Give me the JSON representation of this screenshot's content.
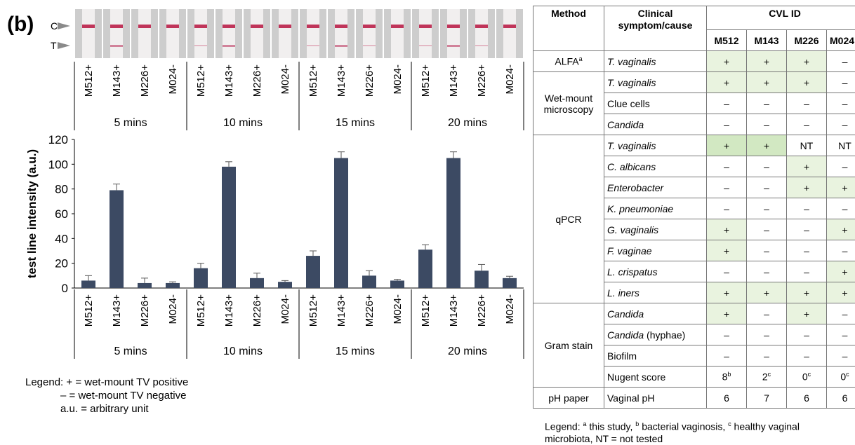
{
  "panel_label": "(b)",
  "strip_markers": {
    "c": "C",
    "t": "T"
  },
  "chart_data": {
    "type": "bar",
    "groups": [
      "5 mins",
      "10 mins",
      "15 mins",
      "20 mins"
    ],
    "categories": [
      "M512+",
      "M143+",
      "M226+",
      "M024-"
    ],
    "values": [
      [
        6,
        79,
        4,
        4
      ],
      [
        16,
        98,
        8,
        5
      ],
      [
        26,
        105,
        10,
        6
      ],
      [
        31,
        105,
        14,
        8
      ]
    ],
    "errors": [
      [
        4,
        5,
        4,
        1
      ],
      [
        4,
        4,
        4,
        1
      ],
      [
        4,
        5,
        4,
        1
      ],
      [
        4,
        5,
        5,
        1.5
      ]
    ],
    "ylabel": "test line intensity (a.u.)",
    "ylim": [
      0,
      120
    ],
    "yticks": [
      0,
      20,
      40,
      60,
      80,
      100,
      120
    ],
    "bar_color": "#3c4a63",
    "grid": false
  },
  "chart_legend": [
    "Legend: + = wet-mount TV positive",
    "            – = wet-mount TV negative",
    "            a.u. = arbitrary unit"
  ],
  "table": {
    "header": {
      "method": "Method",
      "symptom": "Clinical symptom/cause",
      "cvl_id": "CVL ID",
      "ids": [
        "M512",
        "M143",
        "M226",
        "M024"
      ]
    },
    "groups": [
      {
        "method": "ALFA",
        "method_sup": "a",
        "rows": [
          {
            "symptom": "T. vaginalis",
            "italic": true,
            "values": [
              "+",
              "+",
              "+",
              "–"
            ],
            "shade": [
              1,
              1,
              1,
              0
            ]
          }
        ]
      },
      {
        "method": "Wet-mount microscopy",
        "rows": [
          {
            "symptom": "T. vaginalis",
            "italic": true,
            "values": [
              "+",
              "+",
              "+",
              "–"
            ],
            "shade": [
              1,
              1,
              1,
              0
            ]
          },
          {
            "symptom": "Clue cells",
            "italic": false,
            "values": [
              "–",
              "–",
              "–",
              "–"
            ],
            "shade": [
              0,
              0,
              0,
              0
            ]
          },
          {
            "symptom": "Candida",
            "italic": true,
            "values": [
              "–",
              "–",
              "–",
              "–"
            ],
            "shade": [
              0,
              0,
              0,
              0
            ]
          }
        ]
      },
      {
        "method": "qPCR",
        "rows": [
          {
            "symptom": "T. vaginalis",
            "italic": true,
            "values": [
              "+",
              "+",
              "NT",
              "NT"
            ],
            "shade": [
              2,
              2,
              0,
              0
            ]
          },
          {
            "symptom": "C. albicans",
            "italic": true,
            "values": [
              "–",
              "–",
              "+",
              "–"
            ],
            "shade": [
              0,
              0,
              1,
              0
            ]
          },
          {
            "symptom": "Enterobacter",
            "italic": true,
            "values": [
              "–",
              "–",
              "+",
              "+"
            ],
            "shade": [
              0,
              0,
              1,
              1
            ]
          },
          {
            "symptom": "K. pneumoniae",
            "italic": true,
            "values": [
              "–",
              "–",
              "–",
              "–"
            ],
            "shade": [
              0,
              0,
              0,
              0
            ]
          },
          {
            "symptom": "G. vaginalis",
            "italic": true,
            "values": [
              "+",
              "–",
              "–",
              "+"
            ],
            "shade": [
              1,
              0,
              0,
              1
            ]
          },
          {
            "symptom": "F. vaginae",
            "italic": true,
            "values": [
              "+",
              "–",
              "–",
              "–"
            ],
            "shade": [
              1,
              0,
              0,
              0
            ]
          },
          {
            "symptom": "L. crispatus",
            "italic": true,
            "values": [
              "–",
              "–",
              "–",
              "+"
            ],
            "shade": [
              0,
              0,
              0,
              1
            ]
          },
          {
            "symptom": "L. iners",
            "italic": true,
            "values": [
              "+",
              "+",
              "+",
              "+"
            ],
            "shade": [
              1,
              1,
              1,
              1
            ]
          }
        ]
      },
      {
        "method": "Gram stain",
        "rows": [
          {
            "symptom": "Candida",
            "italic": true,
            "values": [
              "+",
              "–",
              "+",
              "–"
            ],
            "shade": [
              1,
              0,
              1,
              0
            ]
          },
          {
            "symptom": "Candida (hyphae)",
            "italic": false,
            "italic_word": "Candida",
            "suffix": " (hyphae)",
            "values": [
              "–",
              "–",
              "–",
              "–"
            ],
            "shade": [
              0,
              0,
              0,
              0
            ]
          },
          {
            "symptom": "Biofilm",
            "italic": false,
            "values": [
              "–",
              "–",
              "–",
              "–"
            ],
            "shade": [
              0,
              0,
              0,
              0
            ]
          },
          {
            "symptom": "Nugent score",
            "italic": false,
            "values": [
              "8",
              "2",
              "0",
              "0"
            ],
            "sups": [
              "b",
              "c",
              "c",
              "c"
            ],
            "shade": [
              0,
              0,
              0,
              0
            ]
          }
        ]
      },
      {
        "method": "pH paper",
        "rows": [
          {
            "symptom": "Vaginal pH",
            "italic": false,
            "values": [
              "6",
              "7",
              "6",
              "6"
            ],
            "shade": [
              0,
              0,
              0,
              0
            ]
          }
        ]
      }
    ]
  },
  "table_legend": {
    "prefix": "Legend: ",
    "items": [
      {
        "sup": "a",
        "text": " this study, "
      },
      {
        "sup": "b",
        "text": " bacterial vaginosis, "
      },
      {
        "sup": "c",
        "text": " healthy vaginal microbiota, NT = not tested"
      }
    ]
  }
}
